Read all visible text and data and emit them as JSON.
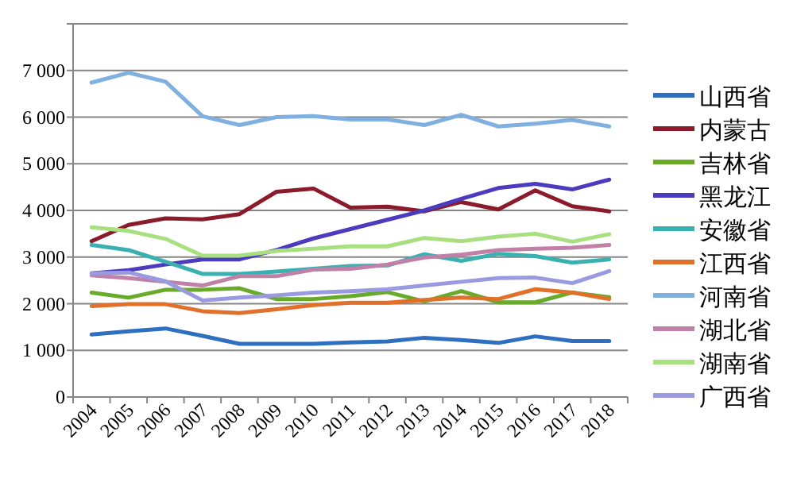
{
  "chart_data": {
    "type": "line",
    "categories": [
      "2004",
      "2005",
      "2006",
      "2007",
      "2008",
      "2009",
      "2010",
      "2011",
      "2012",
      "2013",
      "2014",
      "2015",
      "2016",
      "2017",
      "2018"
    ],
    "series": [
      {
        "name": "山西省",
        "color": "#2f6fbf",
        "values": [
          1340,
          1410,
          1470,
          1310,
          1140,
          1140,
          1140,
          1170,
          1190,
          1270,
          1220,
          1160,
          1300,
          1200,
          1200
        ]
      },
      {
        "name": "内蒙古",
        "color": "#8b1a2b",
        "values": [
          3340,
          3690,
          3830,
          3810,
          3920,
          4400,
          4470,
          4060,
          4080,
          3980,
          4180,
          4020,
          4430,
          4090,
          3980
        ]
      },
      {
        "name": "吉林省",
        "color": "#6aaa2a",
        "values": [
          2240,
          2130,
          2300,
          2300,
          2330,
          2100,
          2100,
          2160,
          2250,
          2050,
          2270,
          2030,
          2030,
          2240,
          2140
        ]
      },
      {
        "name": "黑龙江",
        "color": "#4b3bbf",
        "values": [
          2650,
          2720,
          2840,
          2950,
          2950,
          3150,
          3400,
          3600,
          3800,
          4000,
          4250,
          4480,
          4570,
          4450,
          4660
        ]
      },
      {
        "name": "安徽省",
        "color": "#3bb0b0",
        "values": [
          3260,
          3150,
          2900,
          2640,
          2640,
          2690,
          2750,
          2810,
          2820,
          3060,
          2920,
          3070,
          3020,
          2880,
          2950
        ]
      },
      {
        "name": "江西省",
        "color": "#e0702a",
        "values": [
          1950,
          1990,
          1990,
          1840,
          1800,
          1880,
          1970,
          2020,
          2020,
          2080,
          2130,
          2100,
          2310,
          2240,
          2100
        ]
      },
      {
        "name": "河南省",
        "color": "#7fb0e0",
        "values": [
          6740,
          6950,
          6760,
          6020,
          5830,
          6000,
          6020,
          5950,
          5950,
          5830,
          6050,
          5800,
          5860,
          5940,
          5800
        ]
      },
      {
        "name": "湖北省",
        "color": "#c080a8",
        "values": [
          2610,
          2550,
          2470,
          2390,
          2590,
          2590,
          2730,
          2750,
          2840,
          2990,
          3050,
          3150,
          3180,
          3200,
          3260
        ]
      },
      {
        "name": "湖南省",
        "color": "#a8e080",
        "values": [
          3640,
          3560,
          3390,
          3030,
          3030,
          3130,
          3180,
          3230,
          3230,
          3410,
          3340,
          3440,
          3500,
          3330,
          3490
        ]
      },
      {
        "name": "广西省",
        "color": "#9a9ae0",
        "values": [
          2650,
          2670,
          2480,
          2070,
          2130,
          2180,
          2240,
          2270,
          2310,
          2390,
          2470,
          2550,
          2560,
          2440,
          2700
        ]
      }
    ],
    "ylim": [
      0,
      8000
    ],
    "yticks": [
      0,
      {
        "value": 1000,
        "label": "1 000"
      },
      {
        "value": 2000,
        "label": "2 000"
      },
      {
        "value": 3000,
        "label": "3 000"
      },
      {
        "value": 4000,
        "label": "4 000"
      },
      {
        "value": 5000,
        "label": "5 000"
      },
      {
        "value": 6000,
        "label": "6 000"
      },
      {
        "value": 7000,
        "label": "7 000"
      },
      {
        "value": 8000,
        "label": null
      }
    ],
    "grid": "y",
    "legend": "right",
    "marker": "none",
    "line_style": "solid"
  }
}
